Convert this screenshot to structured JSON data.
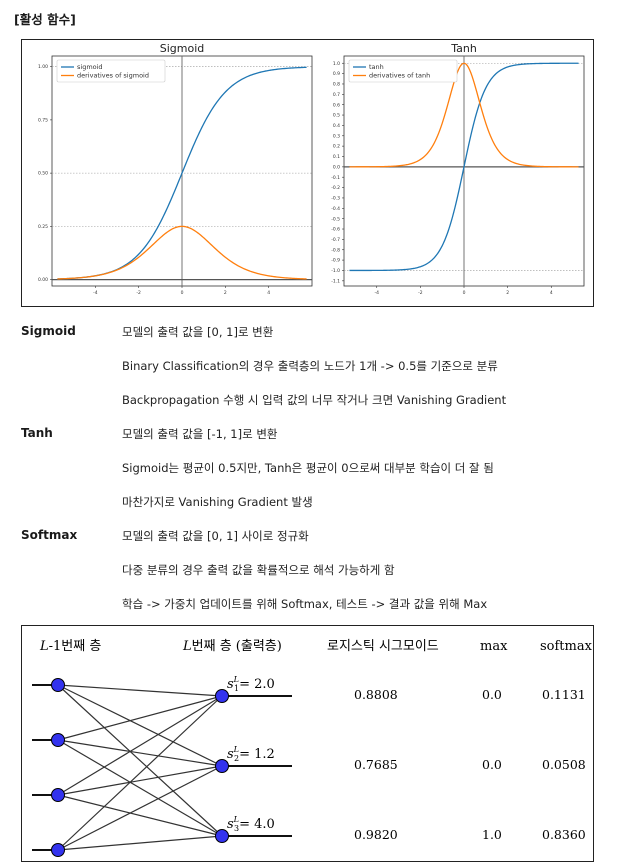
{
  "heading": "[활성 함수]",
  "charts": {
    "sigmoid": {
      "title": "Sigmoid",
      "legend": [
        "sigmoid",
        "derivatives of sigmoid"
      ],
      "x_ticks": [
        "-4",
        "-2",
        "0",
        "2",
        "4"
      ],
      "y_ticks": [
        "0.00",
        "0.25",
        "0.50",
        "0.75",
        "1.00"
      ]
    },
    "tanh": {
      "title": "Tanh",
      "legend": [
        "tanh",
        "derivatives of tanh"
      ],
      "x_ticks": [
        "-4",
        "-2",
        "0",
        "2",
        "4"
      ],
      "y_ticks": [
        "-1.1",
        "-1.0",
        "-0.9",
        "-0.8",
        "-0.7",
        "-0.6",
        "-0.5",
        "-0.4",
        "-0.3",
        "-0.2",
        "-0.1",
        "0.0",
        "0.1",
        "0.2",
        "0.3",
        "0.4",
        "0.5",
        "0.6",
        "0.7",
        "0.8",
        "0.9",
        "1.0"
      ]
    },
    "colors": {
      "blue": "#1f77b4",
      "orange": "#ff7f0e"
    }
  },
  "chart_data": [
    {
      "type": "line",
      "title": "Sigmoid",
      "xlim": [
        -5,
        5
      ],
      "ylim": [
        0,
        1
      ],
      "series": [
        {
          "name": "sigmoid",
          "function": "1/(1+e^-x)"
        },
        {
          "name": "derivatives of sigmoid",
          "function": "s(x)(1-s(x))"
        }
      ]
    },
    {
      "type": "line",
      "title": "Tanh",
      "xlim": [
        -5,
        5
      ],
      "ylim": [
        -1.1,
        1.0
      ],
      "series": [
        {
          "name": "tanh",
          "function": "tanh(x)"
        },
        {
          "name": "derivatives of tanh",
          "function": "1-tanh(x)^2"
        }
      ]
    }
  ],
  "definitions": [
    {
      "term": "Sigmoid",
      "lines": [
        "모델의 출력 값을 [0, 1]로 변환",
        "Binary Classification의 경우 출력층의 노드가 1개 -> 0.5를 기준으로 분류",
        "Backpropagation 수행 시 입력 값의 너무 작거나 크면 Vanishing Gradient"
      ]
    },
    {
      "term": "Tanh",
      "lines": [
        "모델의 출력 값을 [-1, 1]로 변환",
        "Sigmoid는 평균이 0.5지만, Tanh은 평균이 0으로써 대부분 학습이 더 잘 됨",
        "마찬가지로 Vanishing Gradient 발생"
      ]
    },
    {
      "term": "Softmax",
      "lines": [
        "모델의 출력 값을 [0, 1] 사이로 정규화",
        "다중 분류의 경우 출력 값을 확률적으로 해석 가능하게 함",
        "학습 -> 가중치 업데이트를 위해 Softmax, 테스트 -> 결과 값을 위해 Max"
      ]
    }
  ],
  "network": {
    "header_prev_italic": "L",
    "header_prev": "-1번째 층",
    "header_curr_italic": "L",
    "header_curr": "번째 층 (출력층)",
    "header_sigmoid": "로지스틱 시그모이드",
    "header_max": "max",
    "header_softmax": "softmax",
    "outputs": [
      {
        "sym": "s",
        "sup": "L",
        "sub": "1",
        "eq": "= 2.0",
        "sigmoid": "0.8808",
        "max": "0.0",
        "softmax": "0.1131"
      },
      {
        "sym": "s",
        "sup": "L",
        "sub": "2",
        "eq": "= 1.2",
        "sigmoid": "0.7685",
        "max": "0.0",
        "softmax": "0.0508"
      },
      {
        "sym": "s",
        "sup": "L",
        "sub": "3",
        "eq": "= 4.0",
        "sigmoid": "0.9820",
        "max": "1.0",
        "softmax": "0.8360"
      }
    ]
  }
}
